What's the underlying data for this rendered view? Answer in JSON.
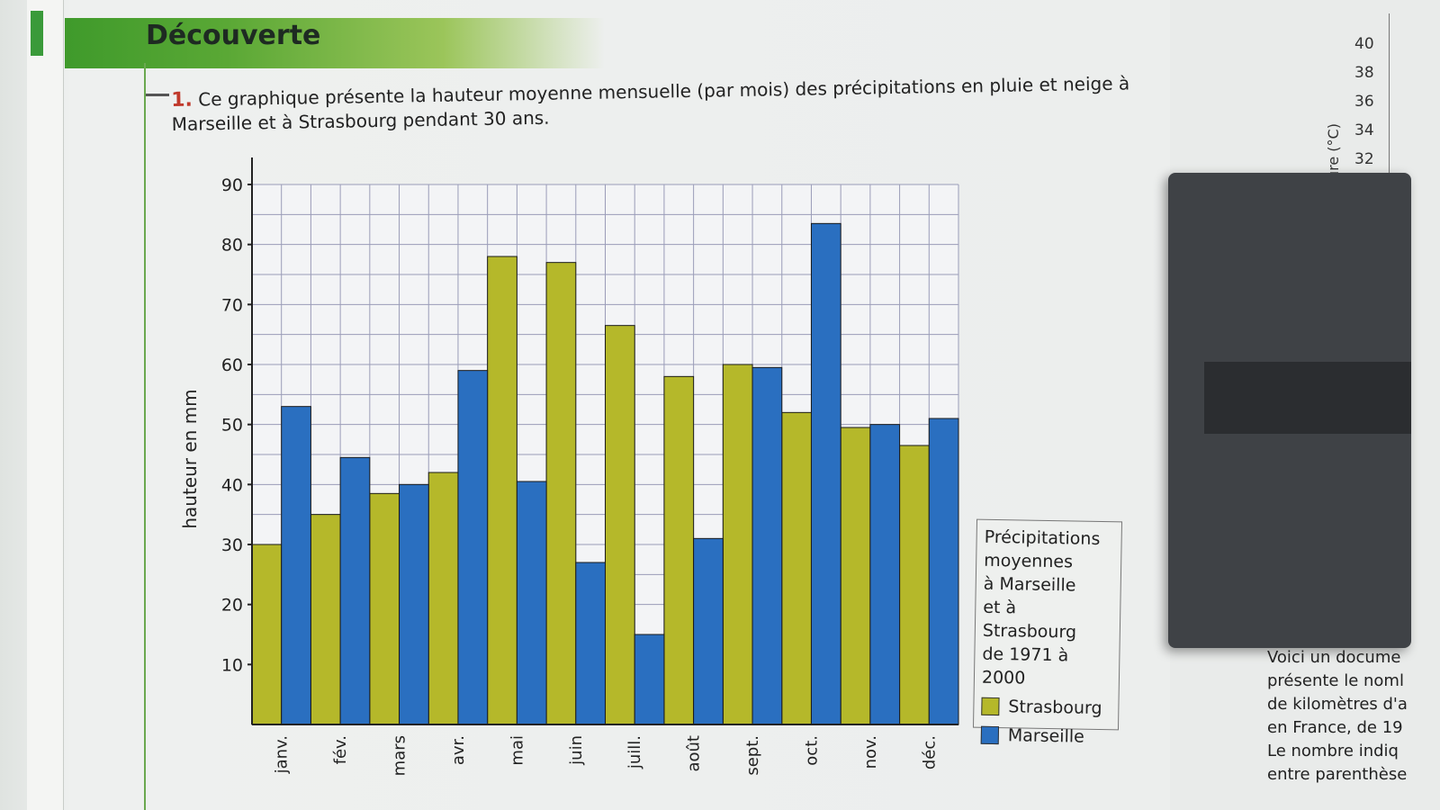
{
  "header": {
    "title": "Découverte"
  },
  "question": {
    "number": "1.",
    "text": "Ce graphique présente la hauteur moyenne mensuelle (par mois) des précipitations en pluie et neige à Marseille et à Strasbourg pendant 30 ans."
  },
  "chart_data": {
    "type": "bar",
    "title": "Précipitations moyennes à Marseille et à Strasbourg de 1971 à 2000",
    "ylabel": "hauteur en mm",
    "xlabel": "",
    "ylim": [
      0,
      90
    ],
    "yticks": [
      10,
      20,
      30,
      40,
      50,
      60,
      70,
      80,
      90
    ],
    "grid": true,
    "legend_position": "right",
    "categories": [
      "janv.",
      "fév.",
      "mars",
      "avr.",
      "mai",
      "juin",
      "juill.",
      "août",
      "sept.",
      "oct.",
      "nov.",
      "déc."
    ],
    "series": [
      {
        "name": "Strasbourg",
        "color": "#b5b82a",
        "values": [
          30,
          35,
          38.5,
          42,
          78,
          77,
          66.5,
          58,
          60,
          52,
          49.5,
          46.5
        ]
      },
      {
        "name": "Marseille",
        "color": "#2a6fc0",
        "values": [
          53,
          44.5,
          40,
          59,
          40.5,
          27,
          15,
          31,
          59.5,
          83.5,
          50,
          51
        ]
      }
    ]
  },
  "legend": {
    "title_lines": [
      "Précipitations",
      "moyennes",
      "à Marseille",
      "et à Strasbourg",
      "de 1971 à 2000"
    ]
  },
  "right_page": {
    "axis_ticks": [
      "40",
      "38",
      "36",
      "34",
      "32"
    ],
    "axis_label": "ure (°C)",
    "text_lines": [
      "Voici un docume",
      "présente le noml",
      "de kilomètres d'a",
      "en France, de 19",
      "Le nombre indiq",
      "entre parenthèse"
    ]
  }
}
